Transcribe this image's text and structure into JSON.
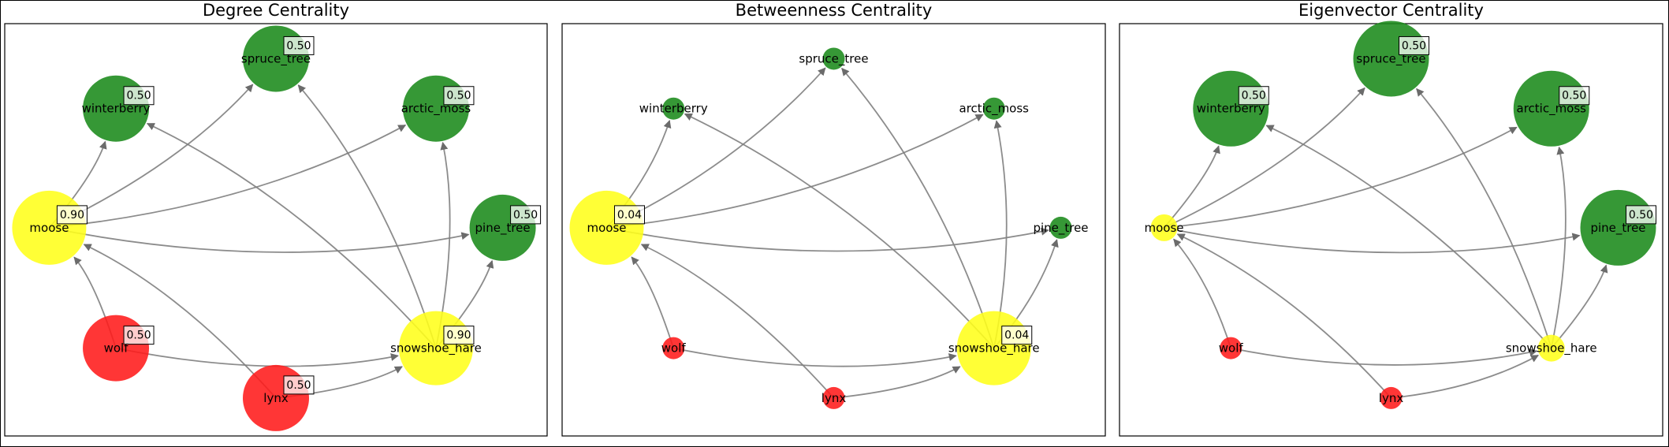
{
  "figure": {
    "colors": {
      "prey": "#ffff1a",
      "predator": "#ff1a1a",
      "plant": "#1a8a1a",
      "edge": "#808080"
    },
    "panels": [
      {
        "title": "Degree Centrality",
        "nodes": [
          {
            "id": "spruce_tree",
            "label": "spruce_tree",
            "group": "plant",
            "value": "0.50",
            "show_value": true
          },
          {
            "id": "winterberry",
            "label": "winterberry",
            "group": "plant",
            "value": "0.50",
            "show_value": true
          },
          {
            "id": "arctic_moss",
            "label": "arctic_moss",
            "group": "plant",
            "value": "0.50",
            "show_value": true
          },
          {
            "id": "moose",
            "label": "moose",
            "group": "prey",
            "value": "0.90",
            "show_value": true
          },
          {
            "id": "pine_tree",
            "label": "pine_tree",
            "group": "plant",
            "value": "0.50",
            "show_value": true
          },
          {
            "id": "wolf",
            "label": "wolf",
            "group": "predator",
            "value": "0.50",
            "show_value": true
          },
          {
            "id": "snowshoe_hare",
            "label": "snowshoe_hare",
            "group": "prey",
            "value": "0.90",
            "show_value": true
          },
          {
            "id": "lynx",
            "label": "lynx",
            "group": "predator",
            "value": "0.50",
            "show_value": true
          }
        ]
      },
      {
        "title": "Betweenness Centrality",
        "nodes": [
          {
            "id": "spruce_tree",
            "label": "spruce_tree",
            "group": "plant",
            "value": "0.00",
            "show_value": false
          },
          {
            "id": "winterberry",
            "label": "winterberry",
            "group": "plant",
            "value": "0.00",
            "show_value": false
          },
          {
            "id": "arctic_moss",
            "label": "arctic_moss",
            "group": "plant",
            "value": "0.00",
            "show_value": false
          },
          {
            "id": "moose",
            "label": "moose",
            "group": "prey",
            "value": "0.04",
            "show_value": true
          },
          {
            "id": "pine_tree",
            "label": "pine_tree",
            "group": "plant",
            "value": "0.00",
            "show_value": false
          },
          {
            "id": "wolf",
            "label": "wolf",
            "group": "predator",
            "value": "0.00",
            "show_value": false
          },
          {
            "id": "snowshoe_hare",
            "label": "snowshoe_hare",
            "group": "prey",
            "value": "0.04",
            "show_value": true
          },
          {
            "id": "lynx",
            "label": "lynx",
            "group": "predator",
            "value": "0.00",
            "show_value": false
          }
        ]
      },
      {
        "title": "Eigenvector Centrality",
        "nodes": [
          {
            "id": "spruce_tree",
            "label": "spruce_tree",
            "group": "plant",
            "value": "0.50",
            "show_value": true
          },
          {
            "id": "winterberry",
            "label": "winterberry",
            "group": "plant",
            "value": "0.50",
            "show_value": true
          },
          {
            "id": "arctic_moss",
            "label": "arctic_moss",
            "group": "plant",
            "value": "0.50",
            "show_value": true
          },
          {
            "id": "moose",
            "label": "moose",
            "group": "prey",
            "value": "0.00",
            "show_value": false
          },
          {
            "id": "pine_tree",
            "label": "pine_tree",
            "group": "plant",
            "value": "0.50",
            "show_value": true
          },
          {
            "id": "wolf",
            "label": "wolf",
            "group": "predator",
            "value": "0.00",
            "show_value": false
          },
          {
            "id": "snowshoe_hare",
            "label": "snowshoe_hare",
            "group": "prey",
            "value": "0.00",
            "show_value": false
          },
          {
            "id": "lynx",
            "label": "lynx",
            "group": "predator",
            "value": "0.00",
            "show_value": false
          }
        ]
      }
    ],
    "edges": [
      {
        "source": "moose",
        "target": "winterberry"
      },
      {
        "source": "moose",
        "target": "spruce_tree"
      },
      {
        "source": "moose",
        "target": "arctic_moss"
      },
      {
        "source": "moose",
        "target": "pine_tree"
      },
      {
        "source": "snowshoe_hare",
        "target": "winterberry"
      },
      {
        "source": "snowshoe_hare",
        "target": "spruce_tree"
      },
      {
        "source": "snowshoe_hare",
        "target": "arctic_moss"
      },
      {
        "source": "snowshoe_hare",
        "target": "pine_tree"
      },
      {
        "source": "wolf",
        "target": "moose"
      },
      {
        "source": "wolf",
        "target": "snowshoe_hare"
      },
      {
        "source": "lynx",
        "target": "moose"
      },
      {
        "source": "lynx",
        "target": "snowshoe_hare"
      }
    ]
  }
}
